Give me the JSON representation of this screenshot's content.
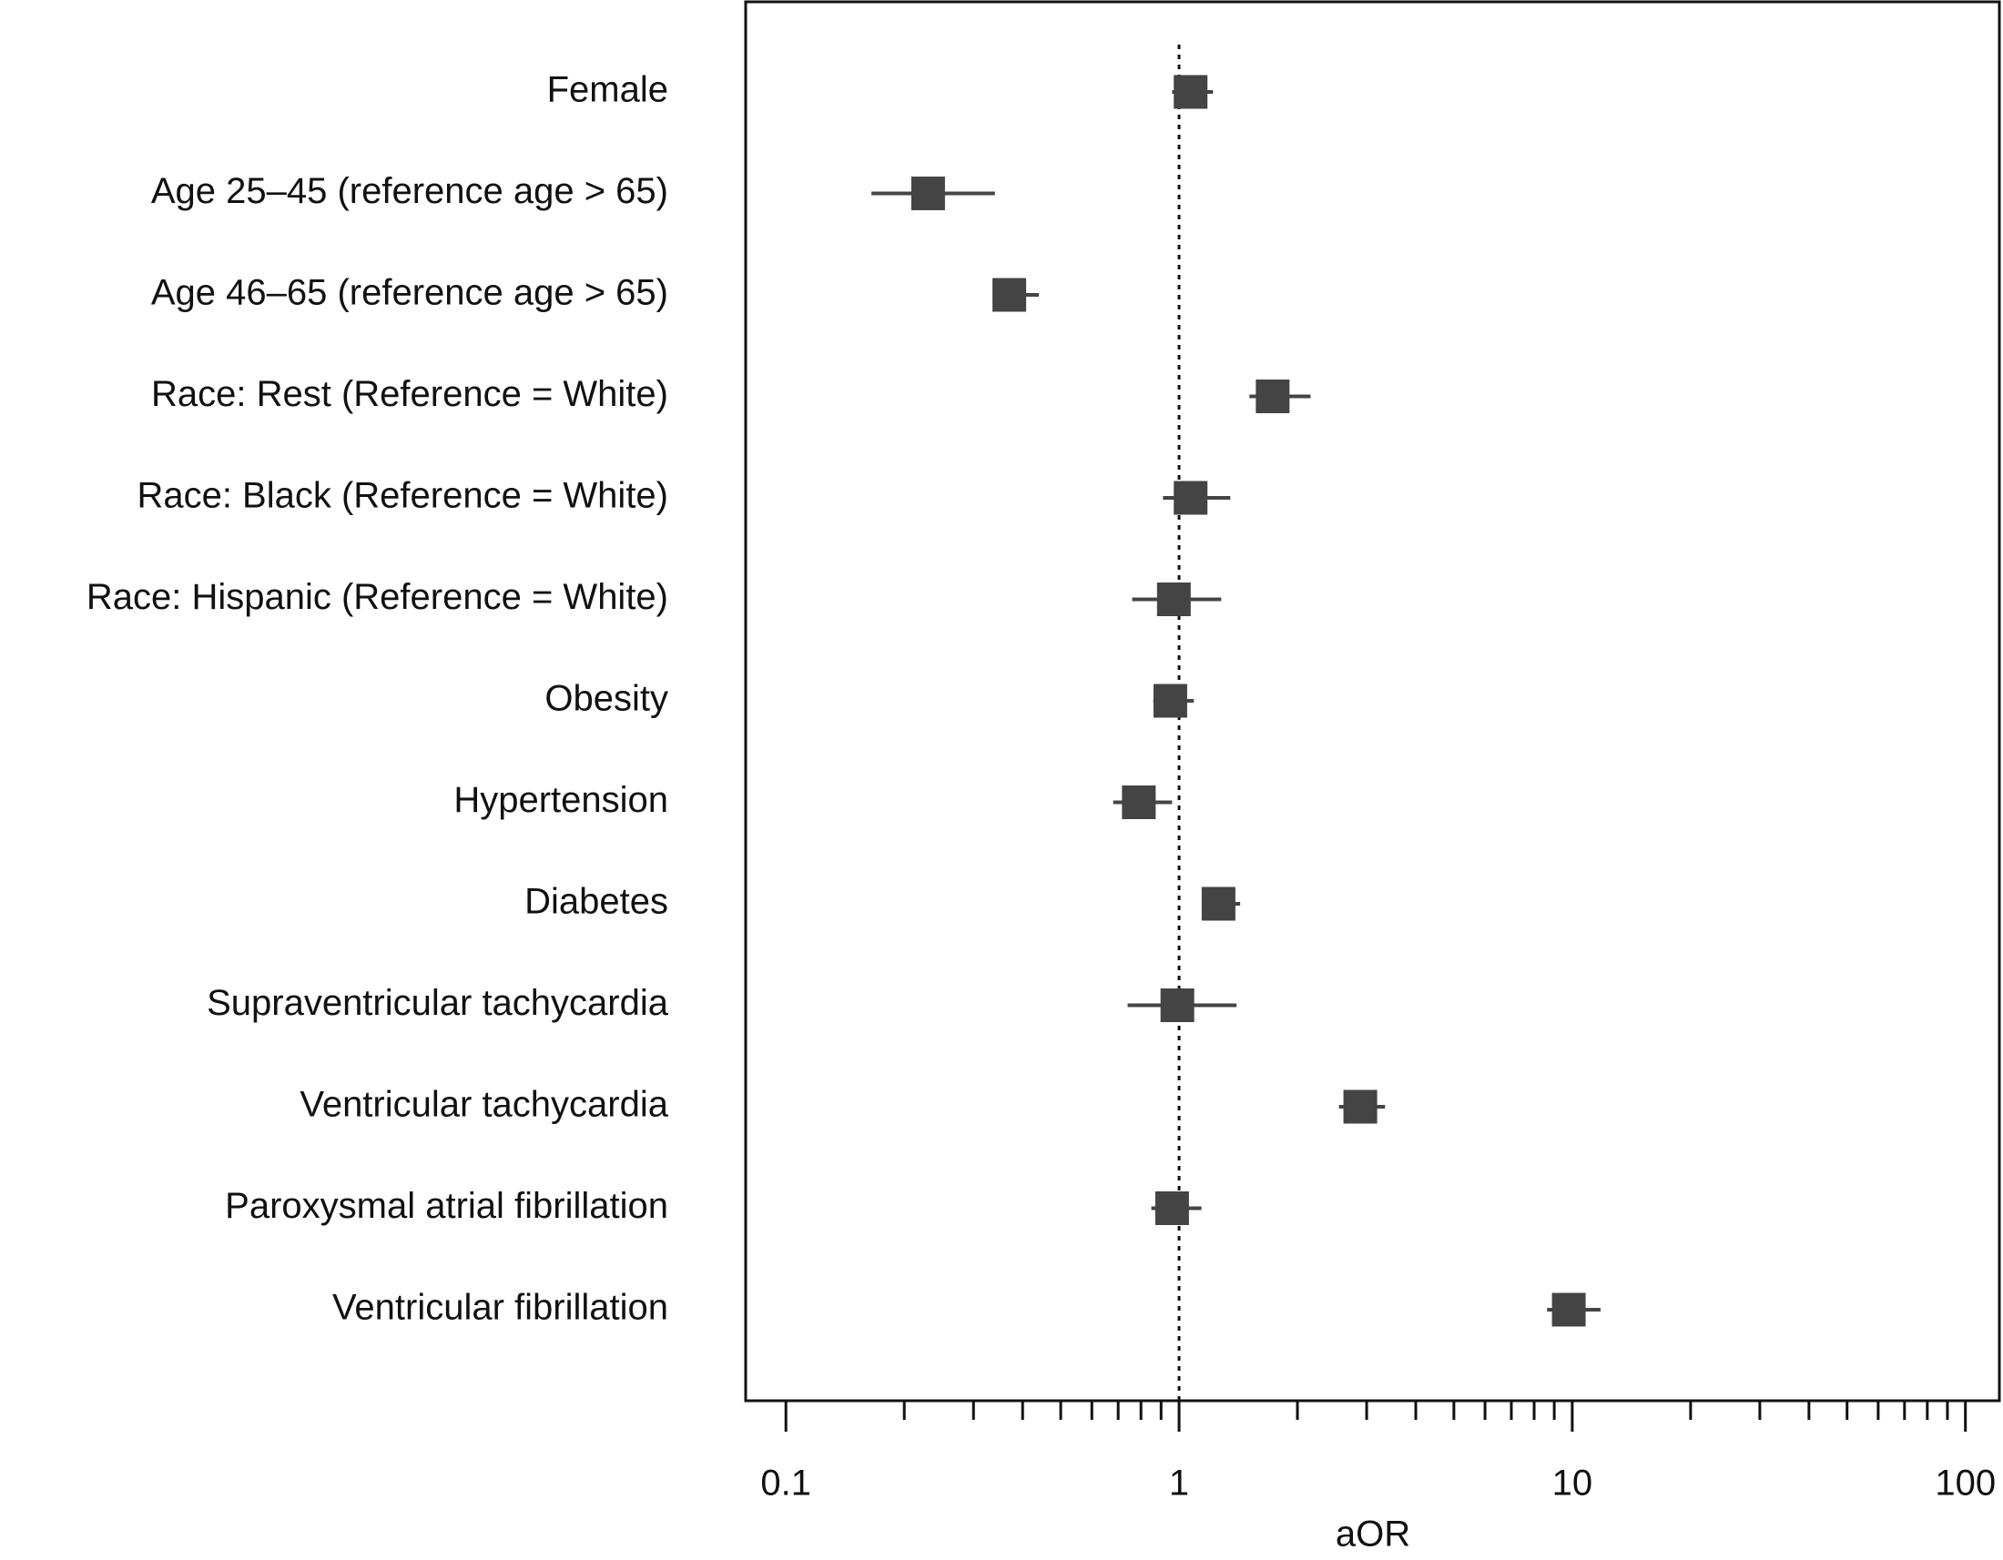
{
  "chart_data": {
    "type": "forest",
    "categories": [
      "Female",
      "Age 25–45 (reference age > 65)",
      "Age 46–65 (reference age > 65)",
      "Race: Rest (Reference = White)",
      "Race: Black (Reference = White)",
      "Race: Hispanic (Reference = White)",
      "Obesity",
      "Hypertension",
      "Diabetes",
      "Supraventricular tachycardia",
      "Ventricular tachycardia",
      "Paroxysmal atrial fibrillation",
      "Ventricular fibrillation"
    ],
    "values": [
      1.07,
      0.23,
      0.37,
      1.73,
      1.07,
      0.97,
      0.95,
      0.79,
      1.26,
      0.99,
      2.89,
      0.96,
      9.8
    ],
    "ci_lower": [
      0.96,
      0.165,
      0.34,
      1.51,
      0.91,
      0.76,
      0.86,
      0.68,
      1.15,
      0.74,
      2.55,
      0.85,
      8.63
    ],
    "ci_upper": [
      1.22,
      0.34,
      0.44,
      2.16,
      1.35,
      1.28,
      1.09,
      0.96,
      1.43,
      1.4,
      3.34,
      1.14,
      11.8
    ],
    "color": "#444444",
    "xscale": "log",
    "xlim": [
      0.079,
      122
    ],
    "xticks": [
      0.1,
      1,
      10,
      100
    ],
    "xminorticks": [
      0.2,
      0.3,
      0.4,
      0.5,
      0.6,
      0.7,
      0.8,
      0.9,
      2,
      3,
      4,
      5,
      6,
      7,
      8,
      9,
      20,
      30,
      40,
      50,
      60,
      70,
      80,
      90
    ],
    "reference_line": 1,
    "xlabel": "aOR"
  }
}
